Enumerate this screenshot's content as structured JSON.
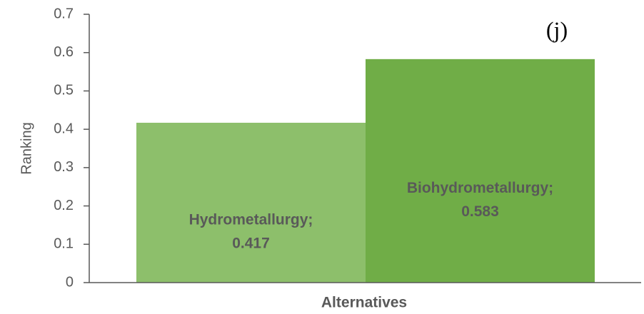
{
  "chart_data": {
    "type": "bar",
    "annotation": "(j)",
    "y_label": "Ranking",
    "x_label": "Alternatives",
    "categories": [
      "Hydrometallurgy;",
      "Biohydrometallurgy;"
    ],
    "values": [
      0.417,
      0.583
    ],
    "colors": [
      "#8dbf6b",
      "#70ad47"
    ],
    "ylim": [
      0,
      0.7
    ],
    "yticks": [
      0,
      0.1,
      0.2,
      0.3,
      0.4,
      0.5,
      0.6,
      0.7
    ]
  }
}
